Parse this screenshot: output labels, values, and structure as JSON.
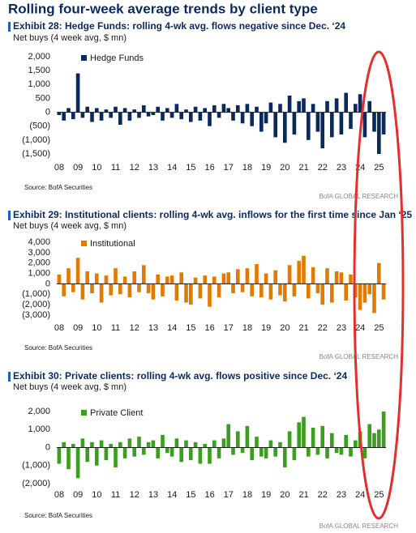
{
  "title": "Rolling four-week average trends by client type",
  "chart_data": [
    {
      "type": "bar",
      "title": "Exhibit 28: Hedge Funds: rolling 4-wk avg. flows negative since Dec. ‘24",
      "subtitle": "Net buys (4 week avg, $ mn)",
      "source": "Source: BofA Securities",
      "credit": "BofA GLOBAL RESEARCH",
      "legend": "upper left",
      "categories": [
        "08",
        null,
        null,
        null,
        "09",
        null,
        null,
        null,
        "10",
        null,
        null,
        null,
        "11",
        null,
        null,
        null,
        "12",
        null,
        null,
        null,
        "13",
        null,
        null,
        null,
        "14",
        null,
        null,
        null,
        "15",
        null,
        null,
        null,
        "16",
        null,
        null,
        null,
        "17",
        null,
        null,
        null,
        "18",
        null,
        null,
        null,
        "19",
        null,
        null,
        null,
        "20",
        null,
        null,
        null,
        "21",
        null,
        null,
        null,
        "22",
        null,
        null,
        null,
        "23",
        null,
        null,
        null,
        "24",
        null,
        null,
        null,
        "25",
        null
      ],
      "series": [
        {
          "name": "Hedge Funds",
          "color": "#0b2a5b",
          "values": [
            -100,
            -300,
            150,
            -250,
            1400,
            -200,
            200,
            -350,
            150,
            -300,
            100,
            -200,
            200,
            -450,
            150,
            -300,
            100,
            -200,
            250,
            -150,
            -100,
            200,
            -300,
            150,
            -200,
            300,
            -250,
            100,
            -350,
            200,
            -300,
            150,
            -500,
            250,
            -200,
            300,
            150,
            -300,
            250,
            -400,
            300,
            -500,
            200,
            -700,
            -400,
            350,
            -900,
            300,
            -1100,
            600,
            -800,
            400,
            500,
            -1000,
            300,
            -700,
            -1300,
            400,
            -900,
            500,
            -800,
            700,
            -600,
            300,
            650,
            -900,
            400,
            -700,
            -1500,
            -800
          ]
        }
      ],
      "ylim": [
        -1500,
        2000
      ],
      "yticks": [
        {
          "value": 2000,
          "label": "2,000"
        },
        {
          "value": 1500,
          "label": "1,500"
        },
        {
          "value": 1000,
          "label": "1,000"
        },
        500,
        0,
        {
          "value": -500,
          "label": "(500)"
        },
        {
          "value": -1000,
          "label": "(1,000)"
        },
        {
          "value": -1500,
          "label": "(1,500)"
        }
      ]
    },
    {
      "type": "bar",
      "title": "Exhibit 29: Institutional clients: rolling 4-wk avg. inflows for the first time since Jan ‘25",
      "subtitle": "Net buys (4 week avg, $ mn)",
      "source": "Source: BofA Securities",
      "credit": "BofA GLOBAL RESEARCH",
      "legend": "upper left",
      "categories": [
        "08",
        null,
        null,
        null,
        "09",
        null,
        null,
        null,
        "10",
        null,
        null,
        null,
        "11",
        null,
        null,
        null,
        "12",
        null,
        null,
        null,
        "13",
        null,
        null,
        null,
        "14",
        null,
        null,
        null,
        "15",
        null,
        null,
        null,
        "16",
        null,
        null,
        null,
        "17",
        null,
        null,
        null,
        "18",
        null,
        null,
        null,
        "19",
        null,
        null,
        null,
        "20",
        null,
        null,
        null,
        "21",
        null,
        null,
        null,
        "22",
        null,
        null,
        null,
        "23",
        null,
        null,
        null,
        "24",
        null,
        null,
        null,
        "25",
        null
      ],
      "series": [
        {
          "name": "Institutional",
          "color": "#e07b00",
          "values": [
            900,
            -1200,
            1500,
            -800,
            2500,
            -1500,
            1200,
            -900,
            1000,
            -1800,
            800,
            -1100,
            1500,
            -1000,
            700,
            -1300,
            1200,
            -800,
            1800,
            -900,
            -1500,
            900,
            -1200,
            700,
            800,
            -1600,
            1100,
            -1800,
            -2000,
            600,
            -1400,
            800,
            -2200,
            700,
            -1300,
            1000,
            1100,
            -900,
            1400,
            -800,
            1500,
            -1200,
            1900,
            -1300,
            1000,
            -1500,
            1300,
            -1100,
            -1700,
            1800,
            -1200,
            2200,
            2700,
            -1400,
            1600,
            -900,
            -2000,
            1500,
            -1800,
            1200,
            1100,
            -1600,
            900,
            -1300,
            -2500,
            -1800,
            -1000,
            -2800,
            2000,
            -1500
          ]
        }
      ],
      "ylim": [
        -3000,
        4000
      ],
      "yticks": [
        {
          "value": 4000,
          "label": "4,000"
        },
        {
          "value": 3000,
          "label": "3,000"
        },
        {
          "value": 2000,
          "label": "2,000"
        },
        {
          "value": 1000,
          "label": "1,000"
        },
        0,
        {
          "value": -1000,
          "label": "(1,000)"
        },
        {
          "value": -2000,
          "label": "(2,000)"
        },
        {
          "value": -3000,
          "label": "(3,000)"
        }
      ]
    },
    {
      "type": "bar",
      "title": "Exhibit 30: Private clients: rolling 4-wk avg. flows positive since Dec. ‘24",
      "subtitle": "Net buys (4 week avg, $ mn)",
      "source": "Source: BofA Securities",
      "credit": "BofA GLOBAL RESEARCH",
      "legend": "upper left",
      "categories": [
        "08",
        null,
        null,
        null,
        "09",
        null,
        null,
        null,
        "10",
        null,
        null,
        null,
        "11",
        null,
        null,
        null,
        "12",
        null,
        null,
        null,
        "13",
        null,
        null,
        null,
        "14",
        null,
        null,
        null,
        "15",
        null,
        null,
        null,
        "16",
        null,
        null,
        null,
        "17",
        null,
        null,
        null,
        "18",
        null,
        null,
        null,
        "19",
        null,
        null,
        null,
        "20",
        null,
        null,
        null,
        "21",
        null,
        null,
        null,
        "22",
        null,
        null,
        null,
        "23",
        null,
        null,
        null,
        "24",
        null,
        null,
        null,
        "25",
        null
      ],
      "series": [
        {
          "name": "Private Client",
          "color": "#3a9e1f",
          "values": [
            -900,
            300,
            -1200,
            200,
            -1700,
            500,
            -800,
            300,
            -1000,
            400,
            -700,
            200,
            -1100,
            300,
            -600,
            500,
            -500,
            600,
            -400,
            300,
            400,
            -600,
            700,
            -300,
            -500,
            500,
            -800,
            400,
            -700,
            300,
            -900,
            200,
            -900,
            400,
            -600,
            500,
            1300,
            -400,
            900,
            -300,
            1200,
            -700,
            600,
            -500,
            -600,
            400,
            -500,
            300,
            -1100,
            900,
            -700,
            1400,
            1700,
            -500,
            1100,
            -400,
            1200,
            -600,
            800,
            -300,
            -400,
            700,
            -500,
            400,
            900,
            -600,
            1300,
            800,
            1000,
            2000
          ]
        }
      ],
      "ylim": [
        -2000,
        2000
      ],
      "yticks": [
        {
          "value": 2000,
          "label": "2,000"
        },
        {
          "value": 1000,
          "label": "1,000"
        },
        0,
        {
          "value": -1000,
          "label": "(1,000)"
        },
        {
          "value": -2000,
          "label": "(2,000)"
        }
      ]
    }
  ]
}
